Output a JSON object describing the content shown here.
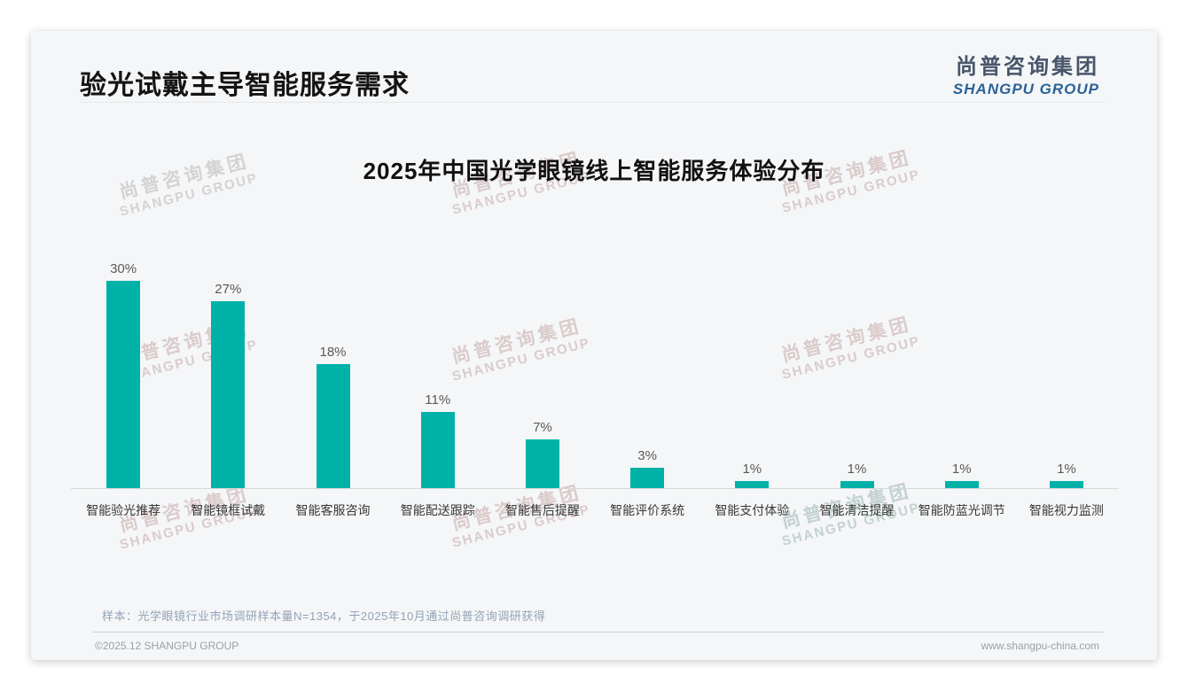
{
  "header": {
    "title": "验光试戴主导智能服务需求"
  },
  "logo": {
    "cn": "尚普咨询集团",
    "en": "SHANGPU GROUP"
  },
  "chart_data": {
    "type": "bar",
    "title": "2025年中国光学眼镜线上智能服务体验分布",
    "categories": [
      "智能验光推荐",
      "智能镜框试戴",
      "智能客服咨询",
      "智能配送跟踪",
      "智能售后提醒",
      "智能评价系统",
      "智能支付体验",
      "智能清洁提醒",
      "智能防蓝光调节",
      "智能视力监测"
    ],
    "values": [
      30,
      27,
      18,
      11,
      7,
      3,
      1,
      1,
      1,
      1
    ],
    "unit": "%",
    "xlabel": "",
    "ylabel": "",
    "ylim": [
      0,
      33
    ],
    "grid": false,
    "legend": false,
    "value_labels_shown": true,
    "bar_color": "#00b1a8"
  },
  "watermark": {
    "line1": "尚普咨询集团",
    "line2": "SHANGPU GROUP"
  },
  "footer": {
    "sample_note": "样本：光学眼镜行业市场调研样本量N=1354，于2025年10月通过尚普咨询调研获得",
    "copyright": "©2025.12 SHANGPU GROUP",
    "website": "www.shangpu-china.com"
  },
  "colors": {
    "accent_teal": "#00b1a8",
    "title_text": "#141414",
    "logo_cn": "#47566a",
    "logo_en": "#2b6399",
    "note_text": "#93a3b8",
    "footer_text": "#9aa0a6",
    "axis_line": "#d8d8d8",
    "card_bg": "#f5f6f7"
  }
}
